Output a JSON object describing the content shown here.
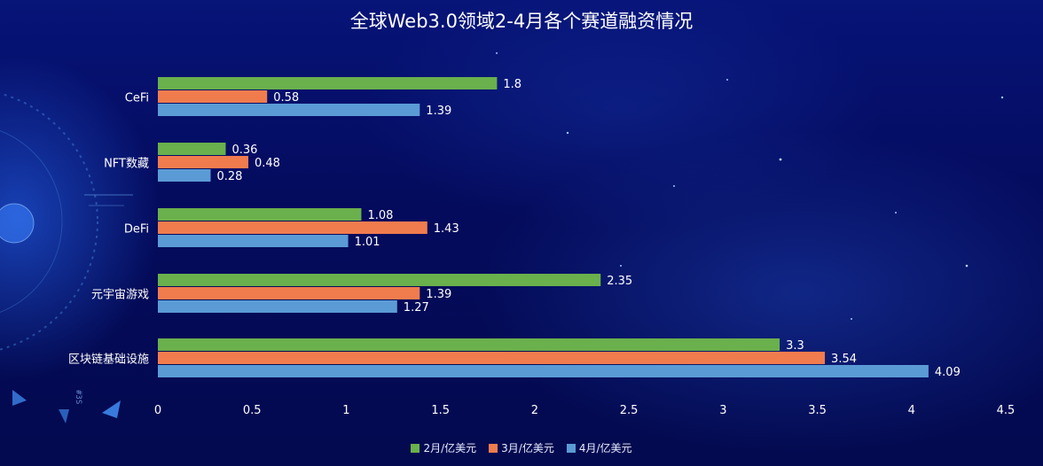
{
  "chart_data": {
    "type": "bar",
    "orientation": "horizontal",
    "title": "全球Web3.0领域2-4月各个赛道融资情况",
    "categories": [
      "CeFi",
      "NFT数藏",
      "DeFi",
      "元宇宙游戏",
      "区块链基础设施"
    ],
    "series": [
      {
        "name": "2月/亿美元",
        "color": "#6ab04c",
        "values": [
          1.8,
          0.36,
          1.08,
          2.35,
          3.3
        ]
      },
      {
        "name": "3月/亿美元",
        "color": "#f07c4e",
        "values": [
          0.58,
          0.48,
          1.43,
          1.39,
          3.54
        ]
      },
      {
        "name": "4月/亿美元",
        "color": "#5b9bd5",
        "values": [
          1.39,
          0.28,
          1.01,
          1.27,
          4.09
        ]
      }
    ],
    "data_labels": [
      [
        "1.8",
        "0.36",
        "1.08",
        "2.35",
        "3.3"
      ],
      [
        "0.58",
        "0.48",
        "1.43",
        "1.39",
        "3.54"
      ],
      [
        "1.39",
        "0.28",
        "1.01",
        "1.27",
        "4.09"
      ]
    ],
    "x_ticks": [
      "0",
      "0.5",
      "1",
      "1.5",
      "2",
      "2.5",
      "3",
      "3.5",
      "4",
      "4.5"
    ],
    "xlim": [
      0,
      4.5
    ],
    "grid": false,
    "legend_position": "bottom",
    "xlabel": "",
    "ylabel": ""
  },
  "decor": {
    "hud_text": "#3S"
  }
}
